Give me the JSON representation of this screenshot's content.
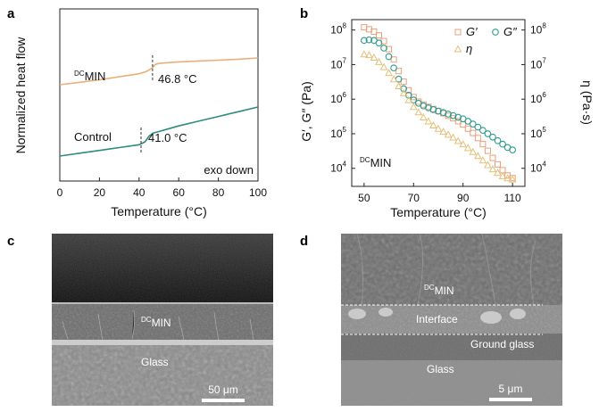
{
  "panel_labels": {
    "a": "a",
    "b": "b",
    "c": "c",
    "d": "d"
  },
  "chart_data": [
    {
      "type": "line",
      "panel": "a",
      "xlabel": "Temperature (°C)",
      "ylabel": "Normalized heat flow",
      "xlim": [
        0,
        100
      ],
      "xticks": [
        0,
        20,
        40,
        60,
        80,
        100
      ],
      "x": [
        0,
        10,
        20,
        30,
        40,
        43,
        45,
        46.8,
        48,
        50,
        55,
        60,
        70,
        80,
        90,
        100
      ],
      "series": [
        {
          "name": "MIN",
          "name_superscript": "DC",
          "color": "#E8B07A",
          "values": [
            0.78,
            0.8,
            0.82,
            0.845,
            0.87,
            0.885,
            0.9,
            0.92,
            0.945,
            0.955,
            0.962,
            0.968,
            0.975,
            0.982,
            0.99,
            1.0
          ]
        },
        {
          "name": "Control",
          "color": "#2E8B7E",
          "values": [
            0.0,
            0.03,
            0.06,
            0.09,
            0.12,
            0.15,
            0.21,
            0.24,
            0.25,
            0.26,
            0.29,
            0.32,
            0.37,
            0.42,
            0.47,
            0.52
          ]
        }
      ],
      "annotations": [
        {
          "text": "46.8 °C",
          "x": 46.8,
          "series": "MIN"
        },
        {
          "text": "41.0 °C",
          "x": 41.0,
          "series": "Control"
        }
      ],
      "corner_note": "exo down"
    },
    {
      "type": "scatter",
      "panel": "b",
      "xlabel": "Temperature (°C)",
      "ylabel": "G′, G″ (Pa)",
      "ylabel_right": "η (Pa·s)",
      "xlim": [
        45,
        115
      ],
      "xticks": [
        50,
        70,
        90,
        110
      ],
      "ylim": [
        3000,
        200000000
      ],
      "ylim_right": [
        3000,
        200000000
      ],
      "yscale": "log",
      "yticks": [
        "10^4",
        "10^5",
        "10^6",
        "10^7",
        "10^8"
      ],
      "x": [
        50,
        52,
        54,
        56,
        58,
        60,
        62,
        64,
        66,
        68,
        70,
        72,
        74,
        76,
        78,
        80,
        82,
        84,
        86,
        88,
        90,
        92,
        94,
        96,
        98,
        100,
        102,
        104,
        106,
        108,
        110
      ],
      "series": [
        {
          "name": "G′",
          "marker": "square",
          "color": "#E8A07A",
          "values": [
            120000000,
            105000000,
            90000000,
            70000000,
            48000000,
            28000000,
            14000000,
            6500000,
            3200000,
            1800000,
            1150000,
            850000,
            700000,
            600000,
            520000,
            450000,
            390000,
            330000,
            280000,
            230000,
            185000,
            140000,
            105000,
            75000,
            50000,
            32000,
            20000,
            13000,
            8800,
            6200,
            5200
          ]
        },
        {
          "name": "G″",
          "marker": "circle",
          "color": "#2E9C8C",
          "values": [
            50000000,
            52000000,
            50000000,
            42000000,
            30000000,
            17000000,
            8000000,
            3800000,
            2000000,
            1300000,
            950000,
            760000,
            640000,
            560000,
            500000,
            450000,
            410000,
            370000,
            335000,
            300000,
            270000,
            230000,
            190000,
            155000,
            125000,
            100000,
            80000,
            63000,
            50000,
            40000,
            34000
          ]
        },
        {
          "name": "η",
          "marker": "triangle",
          "color": "#E3C07A",
          "values": [
            20000000,
            19000000,
            16000000,
            12000000,
            8500000,
            5800000,
            3800000,
            2400000,
            1500000,
            950000,
            600000,
            420000,
            300000,
            230000,
            175000,
            140000,
            115000,
            95000,
            78000,
            62000,
            50000,
            39000,
            30000,
            23000,
            17000,
            12500,
            9500,
            7500,
            6000,
            5200,
            4800
          ]
        }
      ],
      "inset_label": {
        "text": "MIN",
        "superscript": "DC"
      },
      "legend_position": "top-right"
    }
  ],
  "sem_images": [
    {
      "panel": "c",
      "labels": [
        {
          "text": "MIN",
          "superscript": "DC"
        },
        {
          "text": "Glass"
        }
      ],
      "scalebar": "50 μm"
    },
    {
      "panel": "d",
      "labels": [
        {
          "text": "MIN",
          "superscript": "DC"
        },
        {
          "text": "Interface"
        },
        {
          "text": "Ground glass"
        },
        {
          "text": "Glass"
        }
      ],
      "scalebar": "5 μm"
    }
  ]
}
